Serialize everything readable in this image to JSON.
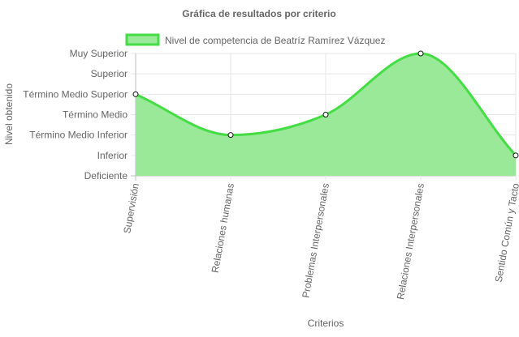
{
  "chart_data": {
    "type": "area",
    "title": "Gráfica de resultados por criterio",
    "xlabel": "Criterios",
    "ylabel": "Nivel obtenido",
    "categories": [
      "Supervisión",
      "Relaciones humanas",
      "Problemas Interpersonales",
      "Relaciones Interpersonales",
      "Sentido Común y Tacto"
    ],
    "y_levels": [
      "Deficiente",
      "Inferior",
      "Término Medio Inferior",
      "Término Medio",
      "Término Medio Superior",
      "Superior",
      "Muy Superior"
    ],
    "ylim": [
      0,
      6
    ],
    "series": [
      {
        "name": "Nivel de competencia de Beatríz Ramírez Vázquez",
        "values": [
          4,
          2,
          3,
          6,
          1
        ],
        "line_color": "#44dd44",
        "fill_color": "#99e999"
      }
    ],
    "grid": true,
    "legend_position": "top",
    "x_tick_rotation": "vertical"
  }
}
